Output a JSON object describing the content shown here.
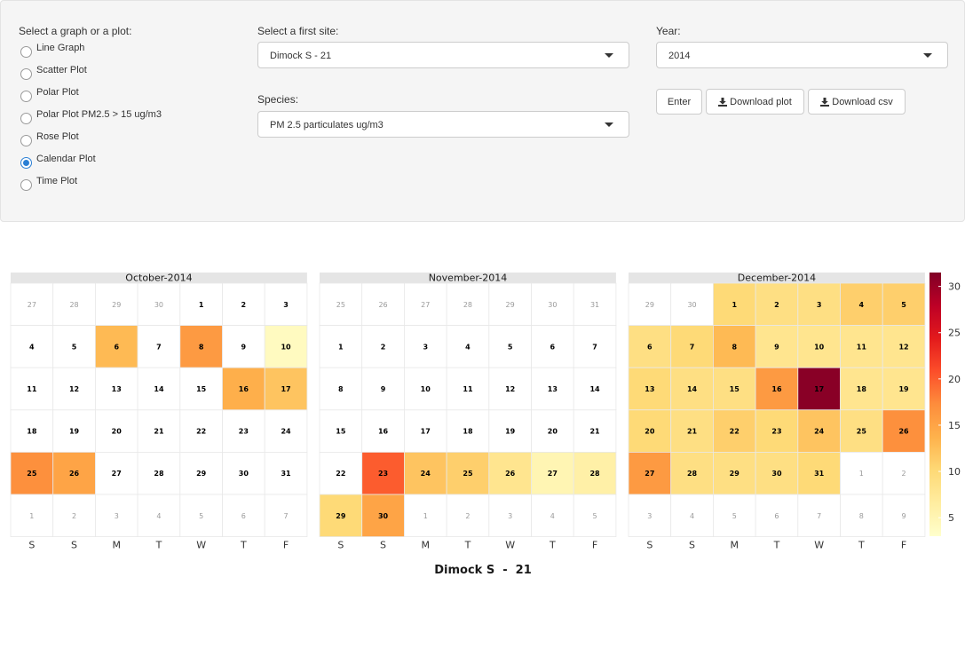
{
  "controls": {
    "plot_type_label": "Select a graph or a plot:",
    "plot_options": [
      {
        "label": "Line Graph",
        "checked": false
      },
      {
        "label": "Scatter Plot",
        "checked": false
      },
      {
        "label": "Polar Plot",
        "checked": false
      },
      {
        "label": "Polar Plot PM2.5 > 15 ug/m3",
        "checked": false
      },
      {
        "label": "Rose Plot",
        "checked": false
      },
      {
        "label": "Calendar Plot",
        "checked": true
      },
      {
        "label": "Time Plot",
        "checked": false
      }
    ],
    "site_label": "Select a first site:",
    "site_value": "Dimock S - 21",
    "species_label": "Species:",
    "species_value": "PM 2.5 particulates ug/m3",
    "year_label": "Year:",
    "year_value": "2014",
    "enter_label": "Enter",
    "download_plot_label": "Download plot",
    "download_csv_label": "Download csv",
    "download_icon": "download-icon"
  },
  "chart_data": {
    "type": "heatmap",
    "title": "Dimock S  -  21",
    "weekday_labels": [
      "S",
      "S",
      "M",
      "T",
      "W",
      "T",
      "F"
    ],
    "colorbar": {
      "ticks": [
        5,
        10,
        15,
        20,
        25,
        30
      ],
      "min": 3,
      "max": 31.5
    },
    "color_scale": [
      "#ffffcc",
      "#ffeda0",
      "#fed976",
      "#feb24c",
      "#fd8d3c",
      "#fc4e2a",
      "#e31a1c",
      "#bd0026",
      "#800026"
    ],
    "months": [
      {
        "name": "October-2014",
        "grid": [
          [
            "27",
            "28",
            "29",
            "30",
            "1",
            "2",
            "3"
          ],
          [
            "4",
            "5",
            "6",
            "7",
            "8",
            "9",
            "10"
          ],
          [
            "11",
            "12",
            "13",
            "14",
            "15",
            "16",
            "17"
          ],
          [
            "18",
            "19",
            "20",
            "21",
            "22",
            "23",
            "24"
          ],
          [
            "25",
            "26",
            "27",
            "28",
            "29",
            "30",
            "31"
          ],
          [
            "1",
            "2",
            "3",
            "4",
            "5",
            "6",
            "7"
          ]
        ],
        "current_month": [
          [
            0,
            0,
            0,
            0,
            1,
            1,
            1
          ],
          [
            1,
            1,
            1,
            1,
            1,
            1,
            1
          ],
          [
            1,
            1,
            1,
            1,
            1,
            1,
            1
          ],
          [
            1,
            1,
            1,
            1,
            1,
            1,
            1
          ],
          [
            1,
            1,
            1,
            1,
            1,
            1,
            1
          ],
          [
            0,
            0,
            0,
            0,
            0,
            0,
            0
          ]
        ],
        "values": [
          [
            null,
            null,
            null,
            null,
            null,
            null,
            null
          ],
          [
            null,
            null,
            13,
            null,
            16,
            null,
            4
          ],
          [
            null,
            null,
            null,
            null,
            null,
            14,
            12
          ],
          [
            null,
            null,
            null,
            null,
            null,
            null,
            null
          ],
          [
            17,
            15,
            null,
            null,
            null,
            null,
            null
          ],
          [
            null,
            null,
            null,
            null,
            null,
            null,
            null
          ]
        ]
      },
      {
        "name": "November-2014",
        "grid": [
          [
            "25",
            "26",
            "27",
            "28",
            "29",
            "30",
            "31"
          ],
          [
            "1",
            "2",
            "3",
            "4",
            "5",
            "6",
            "7"
          ],
          [
            "8",
            "9",
            "10",
            "11",
            "12",
            "13",
            "14"
          ],
          [
            "15",
            "16",
            "17",
            "18",
            "19",
            "20",
            "21"
          ],
          [
            "22",
            "23",
            "24",
            "25",
            "26",
            "27",
            "28"
          ],
          [
            "29",
            "30",
            "1",
            "2",
            "3",
            "4",
            "5"
          ]
        ],
        "current_month": [
          [
            0,
            0,
            0,
            0,
            0,
            0,
            0
          ],
          [
            1,
            1,
            1,
            1,
            1,
            1,
            1
          ],
          [
            1,
            1,
            1,
            1,
            1,
            1,
            1
          ],
          [
            1,
            1,
            1,
            1,
            1,
            1,
            1
          ],
          [
            1,
            1,
            1,
            1,
            1,
            1,
            1
          ],
          [
            1,
            1,
            0,
            0,
            0,
            0,
            0
          ]
        ],
        "values": [
          [
            null,
            null,
            null,
            null,
            null,
            null,
            null
          ],
          [
            null,
            null,
            null,
            null,
            null,
            null,
            null
          ],
          [
            null,
            null,
            null,
            null,
            null,
            null,
            null
          ],
          [
            null,
            null,
            null,
            null,
            null,
            null,
            null
          ],
          [
            null,
            20,
            12,
            11,
            8,
            5,
            6
          ],
          [
            10,
            15,
            null,
            null,
            null,
            null,
            null
          ]
        ]
      },
      {
        "name": "December-2014",
        "grid": [
          [
            "29",
            "30",
            "1",
            "2",
            "3",
            "4",
            "5"
          ],
          [
            "6",
            "7",
            "8",
            "9",
            "10",
            "11",
            "12"
          ],
          [
            "13",
            "14",
            "15",
            "16",
            "17",
            "18",
            "19"
          ],
          [
            "20",
            "21",
            "22",
            "23",
            "24",
            "25",
            "26"
          ],
          [
            "27",
            "28",
            "29",
            "30",
            "31",
            "1",
            "2"
          ],
          [
            "3",
            "4",
            "5",
            "6",
            "7",
            "8",
            "9"
          ]
        ],
        "current_month": [
          [
            0,
            0,
            1,
            1,
            1,
            1,
            1
          ],
          [
            1,
            1,
            1,
            1,
            1,
            1,
            1
          ],
          [
            1,
            1,
            1,
            1,
            1,
            1,
            1
          ],
          [
            1,
            1,
            1,
            1,
            1,
            1,
            1
          ],
          [
            1,
            1,
            1,
            1,
            1,
            0,
            0
          ],
          [
            0,
            0,
            0,
            0,
            0,
            0,
            0
          ]
        ],
        "values": [
          [
            null,
            null,
            10,
            9,
            9,
            11,
            11
          ],
          [
            9,
            10,
            13,
            8,
            8,
            8,
            8
          ],
          [
            10,
            9,
            9,
            16,
            31,
            8,
            8
          ],
          [
            10,
            9,
            11,
            10,
            12,
            9,
            17
          ],
          [
            16,
            9,
            9,
            9,
            10,
            null,
            null
          ],
          [
            null,
            null,
            null,
            null,
            null,
            null,
            null
          ]
        ]
      }
    ]
  }
}
